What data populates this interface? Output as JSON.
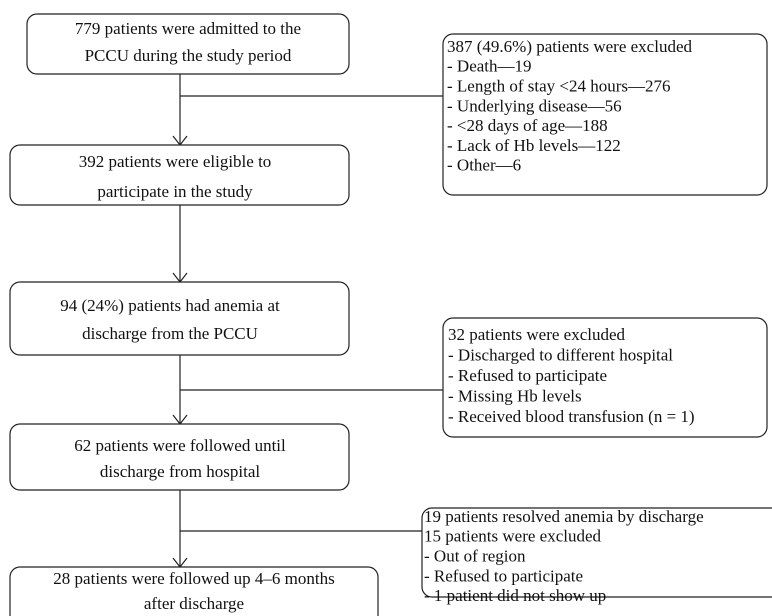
{
  "nodes": [
    {
      "lines": [
        "779 patients were admitted to the",
        "PCCU during the study period"
      ]
    },
    {
      "lines": [
        "392 patients were eligible to",
        "participate in the study"
      ]
    },
    {
      "lines": [
        "94 (24%) patients had anemia at",
        "discharge from the PCCU"
      ]
    },
    {
      "lines": [
        "62 patients were followed until",
        "discharge from hospital"
      ]
    },
    {
      "lines": [
        "28 patients were followed up 4–6 months",
        "after discharge"
      ]
    }
  ],
  "exclusions": [
    {
      "lines": [
        "387 (49.6%) patients were excluded",
        " - Death—19",
        " - Length of stay <24 hours—276",
        " - Underlying disease—56",
        " - <28 days of age—188",
        " - Lack of Hb levels—122",
        " - Other—6"
      ]
    },
    {
      "lines": [
        "32 patients were excluded",
        "- Discharged to different hospital",
        "- Refused to participate",
        "- Missing Hb levels",
        "- Received blood transfusion (n = 1)"
      ]
    },
    {
      "lines": [
        "19 patients resolved anemia by discharge",
        "15 patients were excluded",
        "- Out of region",
        "- Refused to participate",
        "- 1 patient did not show up"
      ]
    }
  ]
}
